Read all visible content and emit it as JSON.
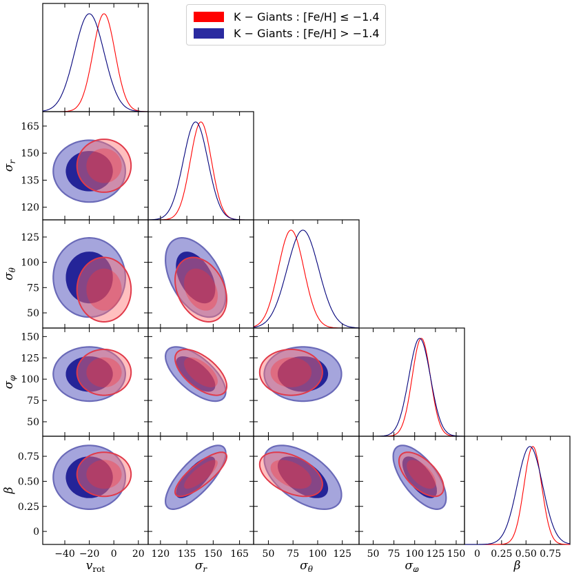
{
  "chart_data": {
    "type": "corner",
    "parameters": [
      {
        "key": "vrot",
        "label": "v_rot",
        "range": [
          -58,
          28
        ],
        "ticks": [
          -40,
          -20,
          0,
          20
        ]
      },
      {
        "key": "sr",
        "label": "σ_r",
        "range": [
          113,
          173
        ],
        "ticks": [
          120,
          135,
          150,
          165
        ]
      },
      {
        "key": "st",
        "label": "σ_θ",
        "range": [
          35,
          142
        ],
        "ticks": [
          50,
          75,
          100,
          125
        ]
      },
      {
        "key": "sp",
        "label": "σ_φ",
        "range": [
          33,
          160
        ],
        "ticks": [
          50,
          75,
          100,
          125,
          150
        ]
      },
      {
        "key": "beta",
        "label": "β",
        "range": [
          -0.13,
          0.95
        ],
        "ticks": [
          0.0,
          0.25,
          0.5,
          0.75
        ]
      }
    ],
    "row_axis_ticks": {
      "sr": [
        120,
        135,
        150,
        165
      ],
      "st": [
        50,
        75,
        100,
        125
      ],
      "sp": [
        50,
        75,
        100,
        125,
        150
      ],
      "beta": [
        0.0,
        0.25,
        0.5,
        0.75
      ]
    },
    "series": [
      {
        "name": "K − Giants :  [Fe/H] ≤ −1.4",
        "color": "#ff0000",
        "mean": {
          "vrot": -8,
          "sr": 143,
          "st": 73,
          "sp": 108,
          "beta": 0.57
        },
        "sd": {
          "vrot": 9,
          "sr": 6,
          "st": 13,
          "sp": 11,
          "beta": 0.09
        },
        "corr": {
          "sr|vrot": 0,
          "st|vrot": 0,
          "st|sr": -0.3,
          "sp|vrot": 0,
          "sp|sr": -0.6,
          "sp|st": 0,
          "beta|vrot": 0,
          "beta|sr": 0.8,
          "beta|st": -0.45,
          "beta|sp": -0.6
        }
      },
      {
        "name": "K − Giants :  [Fe/H] > −1.4",
        "color": "#00007a",
        "mean": {
          "vrot": -20,
          "sr": 140,
          "st": 85,
          "sp": 106,
          "beta": 0.54
        },
        "sd": {
          "vrot": 12,
          "sr": 7,
          "st": 16,
          "sp": 13,
          "beta": 0.13
        },
        "corr": {
          "sr|vrot": 0,
          "st|vrot": 0,
          "st|sr": -0.45,
          "sp|vrot": 0,
          "sp|sr": -0.65,
          "sp|st": 0,
          "beta|vrot": 0,
          "beta|sr": 0.75,
          "beta|st": -0.55,
          "beta|sp": -0.65
        }
      }
    ]
  },
  "axis_labels": {
    "vrot": "v",
    "vrot_sub": "rot",
    "sr": "σ",
    "sr_sub": "r",
    "st": "σ",
    "st_sub": "θ",
    "sp": "σ",
    "sp_sub": "φ",
    "beta": "β"
  },
  "legend": {
    "entry_1": "K − Giants :  [Fe/H] ≤ −1.4",
    "entry_2": "K − Giants :  [Fe/H] > −1.4",
    "color_1": "#ff0000",
    "color_2": "#2a2aa0"
  }
}
